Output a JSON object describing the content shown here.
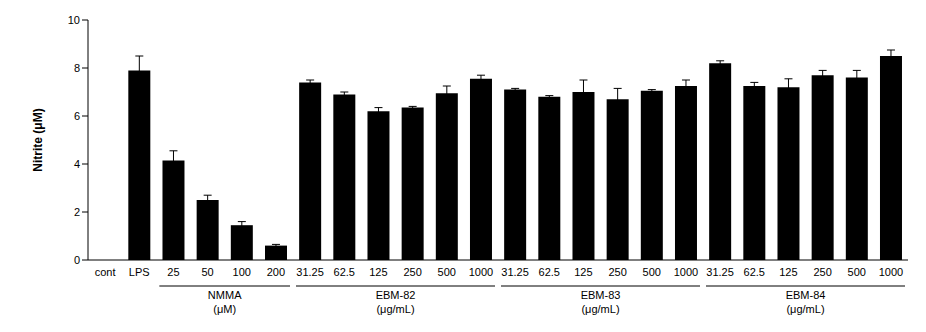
{
  "chart_data": {
    "type": "bar",
    "y_label": "Nitrite (μM)",
    "categories": [
      "cont",
      "LPS",
      "25",
      "50",
      "100",
      "200",
      "31.25",
      "62.5",
      "125",
      "250",
      "500",
      "1000",
      "31.25",
      "62.5",
      "125",
      "250",
      "500",
      "1000",
      "31.25",
      "62.5",
      "125",
      "250",
      "500",
      "1000"
    ],
    "values": [
      0,
      7.9,
      4.15,
      2.5,
      1.45,
      0.6,
      7.4,
      6.9,
      6.2,
      6.35,
      6.95,
      7.55,
      7.1,
      6.8,
      7.0,
      6.7,
      7.05,
      7.25,
      8.2,
      7.25,
      7.2,
      7.7,
      7.6,
      8.5
    ],
    "errors": [
      0,
      0.6,
      0.4,
      0.2,
      0.15,
      0.05,
      0.1,
      0.1,
      0.15,
      0.05,
      0.3,
      0.15,
      0.05,
      0.05,
      0.5,
      0.45,
      0.05,
      0.25,
      0.1,
      0.15,
      0.35,
      0.2,
      0.3,
      0.25
    ],
    "color": "#000000",
    "ylim": [
      0,
      10
    ],
    "yticks": [
      0,
      2,
      4,
      6,
      8,
      10
    ],
    "grid": false,
    "groups": [
      {
        "name": "NMMA",
        "unit": "(μM)",
        "from": 2,
        "to": 5
      },
      {
        "name": "EBM-82",
        "unit": "(μg/mL)",
        "from": 6,
        "to": 11
      },
      {
        "name": "EBM-83",
        "unit": "(μg/mL)",
        "from": 12,
        "to": 17
      },
      {
        "name": "EBM-84",
        "unit": "(μg/mL)",
        "from": 18,
        "to": 23
      }
    ]
  }
}
